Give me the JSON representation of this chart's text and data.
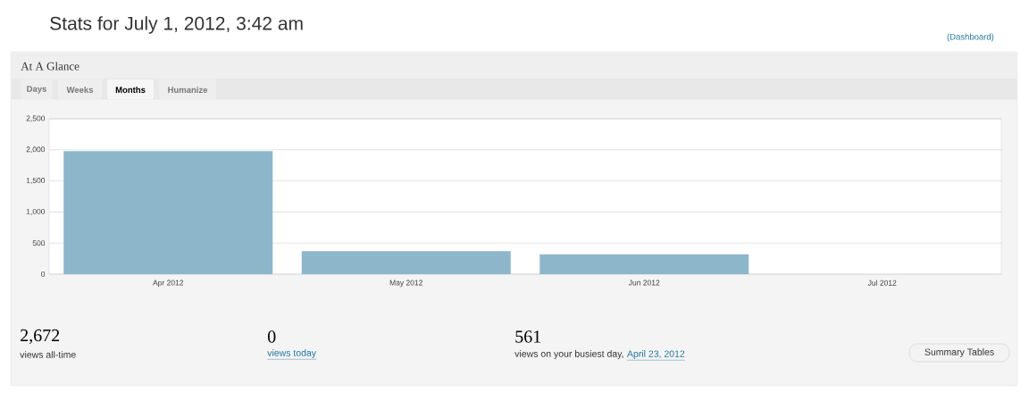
{
  "chart_data": {
    "type": "bar",
    "title": "Stats for July 1, 2012, 3:42 am",
    "subtitle": "At A Glance",
    "categories": [
      "Apr 2012",
      "May 2012",
      "Jun 2012",
      "Jul 2012"
    ],
    "values": [
      1980,
      370,
      320,
      0
    ],
    "color": "#8db6cb",
    "ylim": [
      0,
      2500
    ],
    "yticks": [
      0,
      500,
      {
        "value": 1000,
        "label": "1,000"
      },
      {
        "value": 1500,
        "label": "1,500"
      },
      {
        "value": 2000,
        "label": "2,000"
      },
      {
        "value": 2500,
        "label": "2,500"
      }
    ],
    "grid": "y",
    "annotations": [
      "(Dashboard)",
      "Days",
      "Weeks",
      "Months",
      "Humanize",
      "2,672",
      "views all-time",
      "0",
      "views today",
      "561",
      "views on your busiest day,",
      "April 23, 2012",
      "Summary Tables"
    ]
  }
}
